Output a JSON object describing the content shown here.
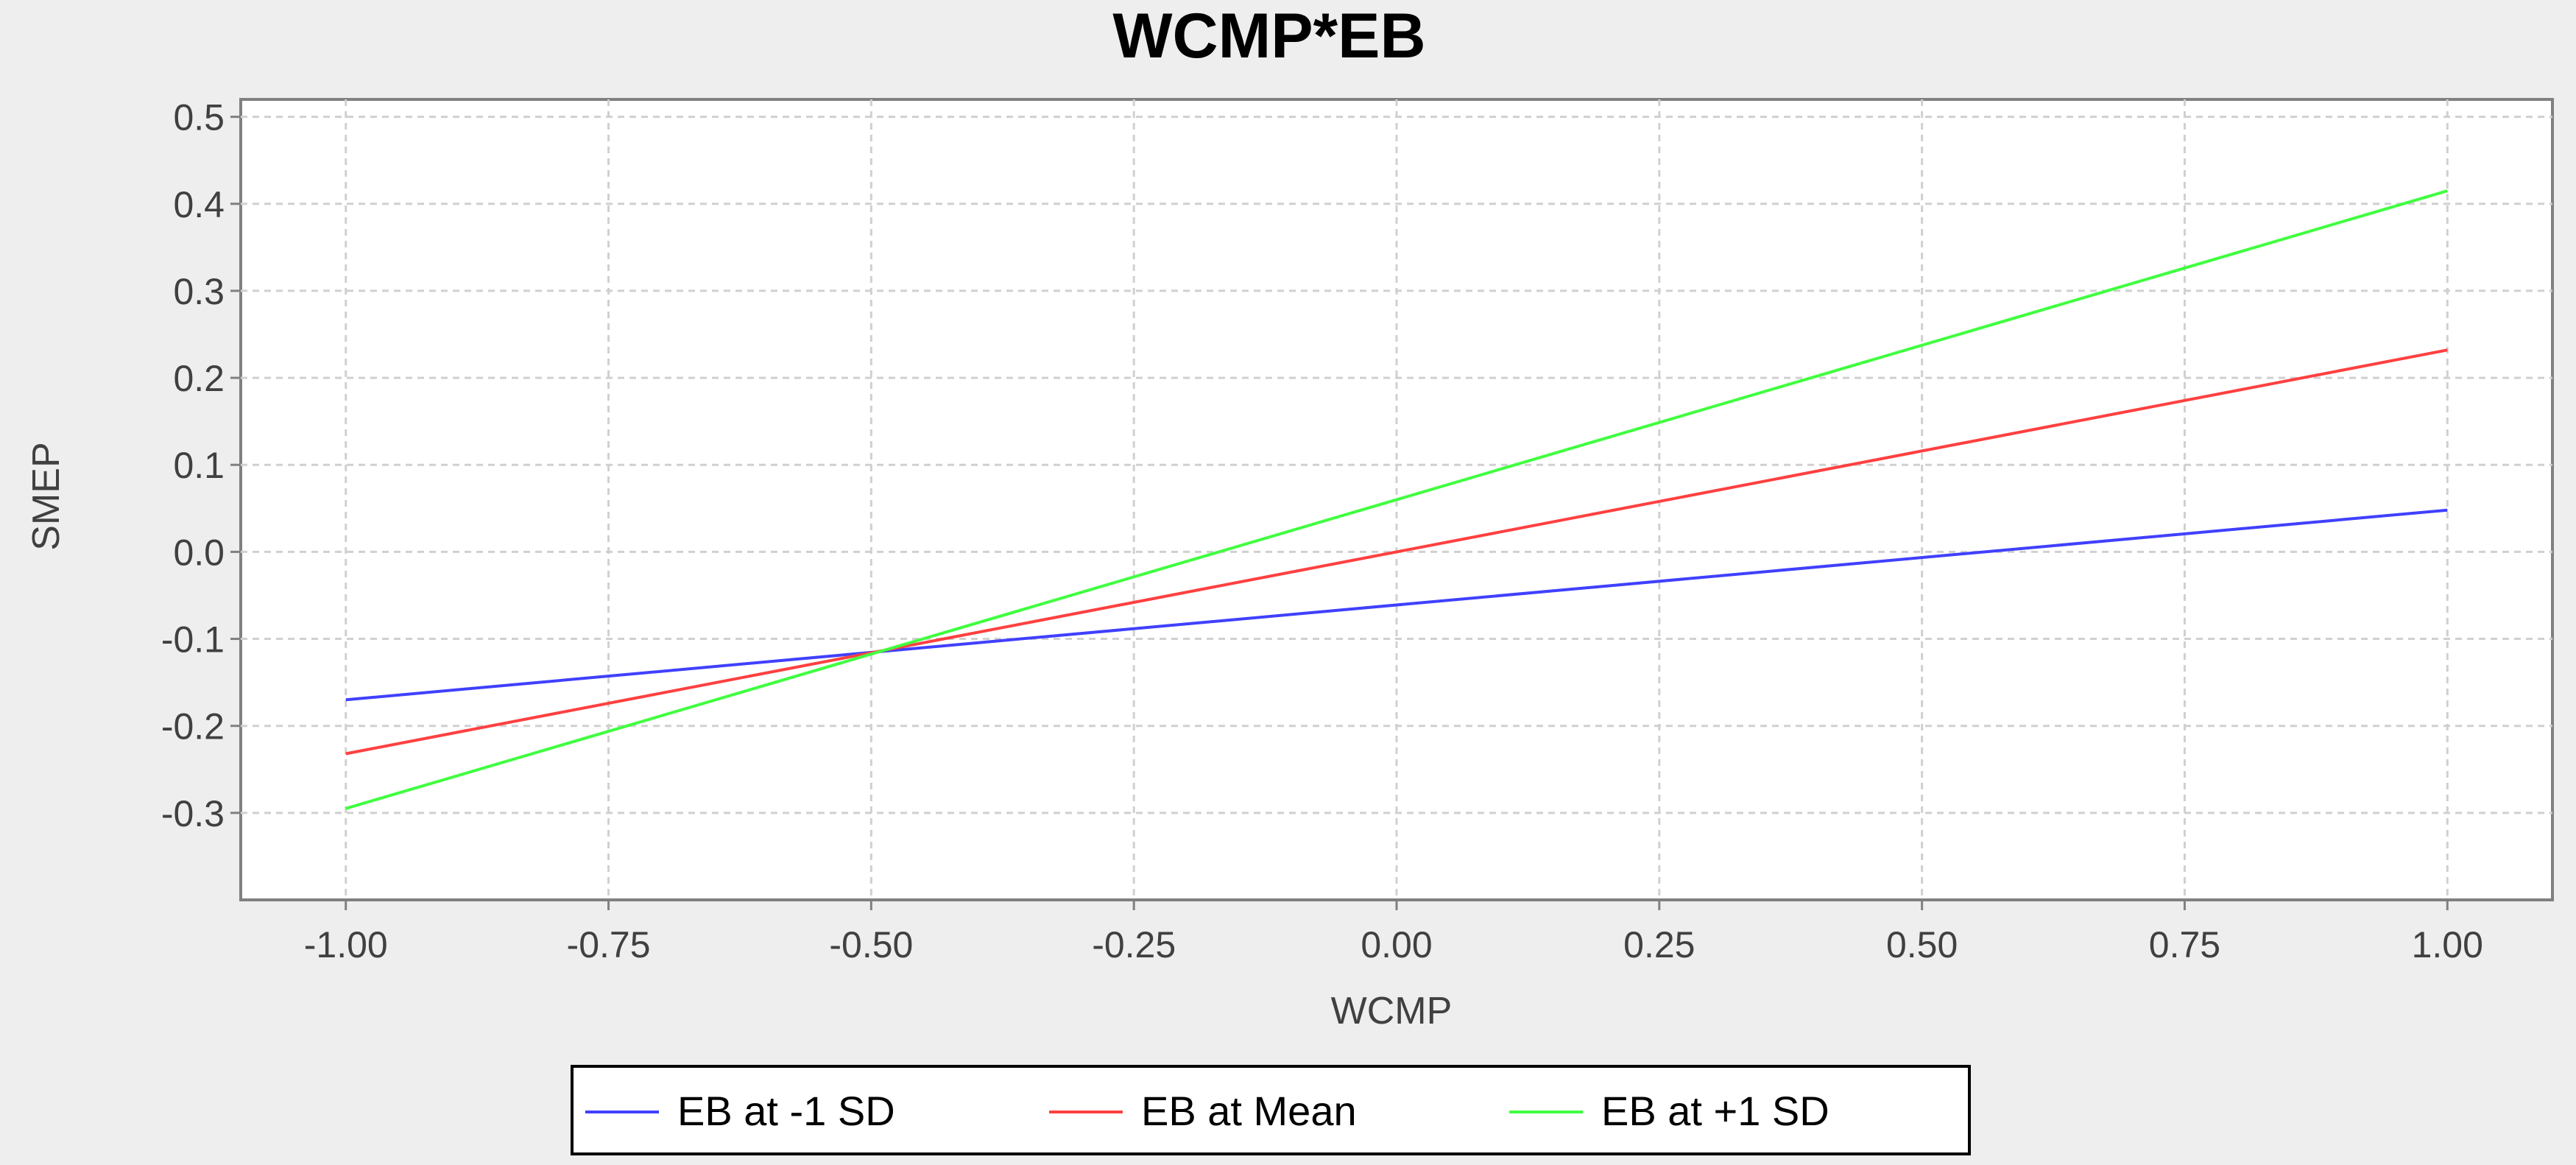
{
  "chart_data": {
    "type": "line",
    "title": "WCMP*EB",
    "xlabel": "WCMP",
    "ylabel": "SMEP",
    "xlim": [
      -1.1,
      1.1
    ],
    "ylim": [
      -0.4,
      0.52
    ],
    "x_ticks": [
      "-1.00",
      "-0.75",
      "-0.50",
      "-0.25",
      "0.00",
      "0.25",
      "0.50",
      "0.75",
      "1.00"
    ],
    "y_ticks": [
      "0.5",
      "0.4",
      "0.3",
      "0.2",
      "0.1",
      "0.0",
      "-0.1",
      "-0.2",
      "-0.3"
    ],
    "grid": true,
    "legend_position": "bottom-center",
    "series": [
      {
        "name": "EB at -1 SD",
        "color": "#4040ff",
        "x": [
          -1.0,
          1.0
        ],
        "y": [
          -0.17,
          0.048
        ]
      },
      {
        "name": "EB at Mean",
        "color": "#ff4040",
        "x": [
          -1.0,
          1.0
        ],
        "y": [
          -0.232,
          0.232
        ]
      },
      {
        "name": "EB at +1 SD",
        "color": "#40ff40",
        "x": [
          -1.0,
          1.0
        ],
        "y": [
          -0.295,
          0.415
        ]
      }
    ]
  }
}
